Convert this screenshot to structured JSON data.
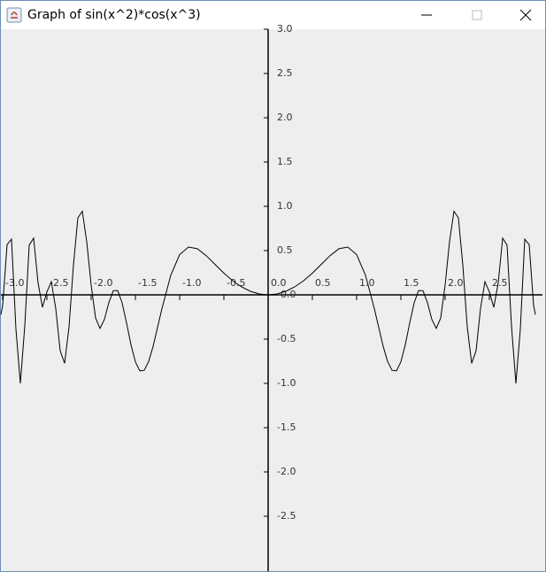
{
  "window": {
    "title": "Graph of sin(x^2)*cos(x^3)"
  },
  "chart_data": {
    "type": "line",
    "color": "#000000",
    "xlim": [
      -3.02,
      3.1
    ],
    "ylim": [
      -3.12,
      3.0
    ],
    "xticks": [
      {
        "value": -3.0,
        "label": "-3.0"
      },
      {
        "value": -2.5,
        "label": "-2.5"
      },
      {
        "value": -2.0,
        "label": "-2.0"
      },
      {
        "value": -1.5,
        "label": "-1.5"
      },
      {
        "value": -1.0,
        "label": "-1.0"
      },
      {
        "value": -0.5,
        "label": "-0.5"
      },
      {
        "value": 0,
        "label": "0.0"
      },
      {
        "value": 0.5,
        "label": "0.5"
      },
      {
        "value": 1.0,
        "label": "1.0"
      },
      {
        "value": 1.5,
        "label": "1.5"
      },
      {
        "value": 2.0,
        "label": "2.0"
      },
      {
        "value": 2.5,
        "label": "2.5"
      }
    ],
    "yticks": [
      {
        "value": 3.0,
        "label": "3.0"
      },
      {
        "value": 2.5,
        "label": "2.5"
      },
      {
        "value": 2.0,
        "label": "2.0"
      },
      {
        "value": 1.5,
        "label": "1.5"
      },
      {
        "value": 1.0,
        "label": "1.0"
      },
      {
        "value": 0.5,
        "label": "0.5"
      },
      {
        "value": 0,
        "label": "-0.0"
      },
      {
        "value": -0.5,
        "label": "-0.5"
      },
      {
        "value": -1.0,
        "label": "-1.0"
      },
      {
        "value": -1.5,
        "label": "-1.5"
      },
      {
        "value": -2.0,
        "label": "-2.0"
      },
      {
        "value": -2.5,
        "label": "-2.5"
      }
    ],
    "x": [
      -3.02,
      -3.0,
      -2.95,
      -2.9,
      -2.85,
      -2.8,
      -2.75,
      -2.7,
      -2.65,
      -2.6,
      -2.55,
      -2.5,
      -2.45,
      -2.4,
      -2.35,
      -2.3,
      -2.25,
      -2.2,
      -2.15,
      -2.1,
      -2.05,
      -2.0,
      -1.95,
      -1.9,
      -1.85,
      -1.8,
      -1.75,
      -1.7,
      -1.65,
      -1.6,
      -1.55,
      -1.5,
      -1.45,
      -1.4,
      -1.35,
      -1.3,
      -1.2,
      -1.1,
      -1.0,
      -0.9,
      -0.8,
      -0.7,
      -0.6,
      -0.5,
      -0.4,
      -0.3,
      -0.2,
      -0.1,
      0,
      0.1,
      0.2,
      0.3,
      0.4,
      0.5,
      0.6,
      0.7,
      0.8,
      0.9,
      1.0,
      1.1,
      1.2,
      1.3,
      1.35,
      1.4,
      1.45,
      1.5,
      1.55,
      1.6,
      1.65,
      1.7,
      1.75,
      1.8,
      1.85,
      1.9,
      1.95,
      2.0,
      2.05,
      2.1,
      2.15,
      2.2,
      2.25,
      2.3,
      2.35,
      2.4,
      2.45,
      2.5,
      2.55,
      2.6,
      2.65,
      2.7,
      2.75,
      2.8,
      2.85,
      2.9,
      2.95,
      3.0,
      3.02
    ],
    "values": [
      -0.223,
      -0.12,
      0.567,
      0.629,
      -0.386,
      -0.999,
      -0.352,
      0.562,
      0.64,
      0.135,
      -0.14,
      0.033,
      0.149,
      -0.154,
      -0.631,
      -0.773,
      -0.363,
      0.337,
      0.87,
      0.944,
      0.602,
      0.11,
      -0.261,
      -0.379,
      -0.277,
      -0.088,
      0.047,
      0.049,
      -0.09,
      -0.317,
      -0.563,
      -0.757,
      -0.858,
      -0.852,
      -0.752,
      -0.582,
      -0.155,
      0.222,
      0.455,
      0.54,
      0.521,
      0.443,
      0.344,
      0.245,
      0.159,
      0.09,
      0.04,
      0.01,
      0,
      0.01,
      0.04,
      0.09,
      0.159,
      0.245,
      0.344,
      0.443,
      0.521,
      0.54,
      0.455,
      0.222,
      -0.155,
      -0.582,
      -0.752,
      -0.852,
      -0.858,
      -0.757,
      -0.563,
      -0.317,
      -0.09,
      0.049,
      0.047,
      -0.088,
      -0.277,
      -0.379,
      -0.261,
      0.11,
      0.602,
      0.944,
      0.87,
      0.337,
      -0.363,
      -0.773,
      -0.631,
      -0.154,
      0.149,
      0.033,
      -0.14,
      0.135,
      0.64,
      0.562,
      -0.352,
      -0.999,
      -0.386,
      0.629,
      0.567,
      -0.12,
      -0.223
    ]
  }
}
